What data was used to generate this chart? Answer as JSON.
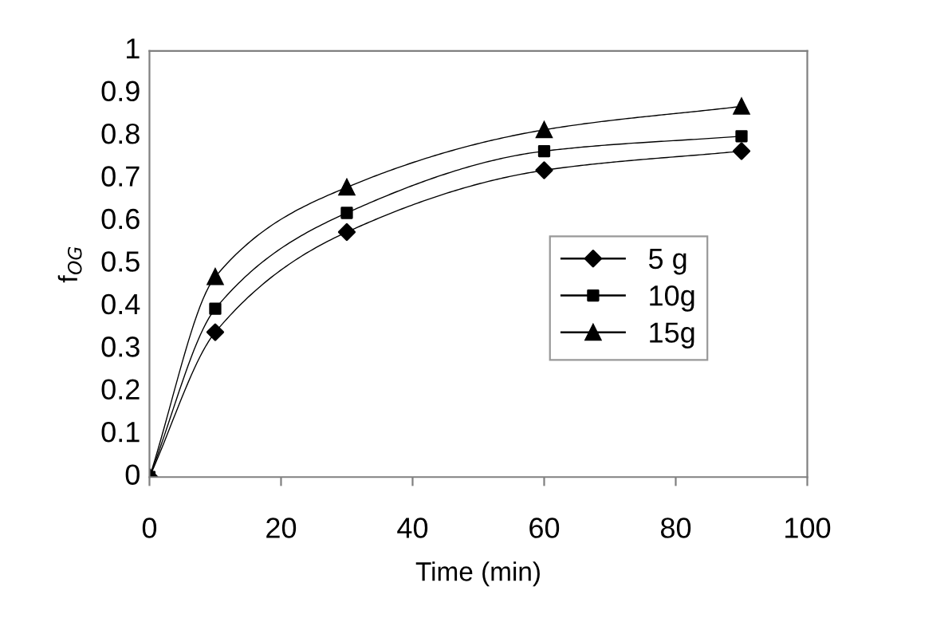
{
  "chart_data": {
    "type": "line",
    "xlabel": "Time (min)",
    "ylabel": "f$_{OG}$",
    "x": [
      0,
      10,
      30,
      60,
      90
    ],
    "series": [
      {
        "name": "5 g",
        "color": "#000000",
        "marker": "diamond",
        "values": [
          0,
          0.34,
          0.575,
          0.72,
          0.765
        ]
      },
      {
        "name": "10g",
        "color": "#000000",
        "marker": "square",
        "values": [
          0,
          0.395,
          0.62,
          0.765,
          0.8
        ]
      },
      {
        "name": "15g",
        "color": "#000000",
        "marker": "triangle",
        "values": [
          0,
          0.47,
          0.68,
          0.815,
          0.87
        ]
      }
    ],
    "xlim": [
      0,
      100
    ],
    "xticks": [
      0,
      20,
      40,
      60,
      80,
      100
    ],
    "ylim": [
      0,
      1
    ],
    "yticks": [
      0,
      0.1,
      0.2,
      0.3,
      0.4,
      0.5,
      0.6,
      0.7,
      0.8,
      0.9,
      1
    ],
    "grid": false,
    "legend": "center right"
  }
}
